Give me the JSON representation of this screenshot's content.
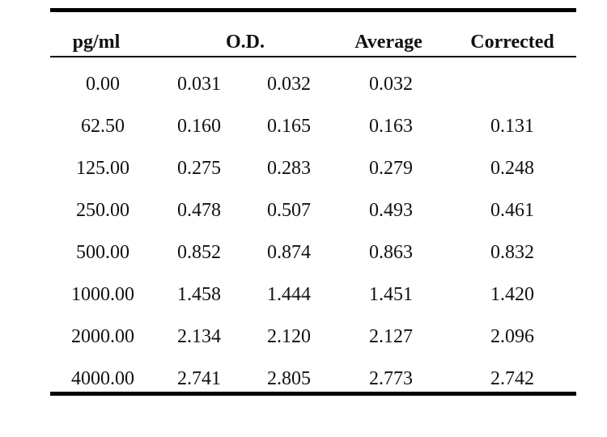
{
  "table": {
    "headers": {
      "concentration": "pg/ml",
      "od": "O.D.",
      "average": "Average",
      "corrected": "Corrected"
    },
    "rows": [
      {
        "conc": "0.00",
        "od1": "0.031",
        "od2": "0.032",
        "avg": "0.032",
        "corr": ""
      },
      {
        "conc": "62.50",
        "od1": "0.160",
        "od2": "0.165",
        "avg": "0.163",
        "corr": "0.131"
      },
      {
        "conc": "125.00",
        "od1": "0.275",
        "od2": "0.283",
        "avg": "0.279",
        "corr": "0.248"
      },
      {
        "conc": "250.00",
        "od1": "0.478",
        "od2": "0.507",
        "avg": "0.493",
        "corr": "0.461"
      },
      {
        "conc": "500.00",
        "od1": "0.852",
        "od2": "0.874",
        "avg": "0.863",
        "corr": "0.832"
      },
      {
        "conc": "1000.00",
        "od1": "1.458",
        "od2": "1.444",
        "avg": "1.451",
        "corr": "1.420"
      },
      {
        "conc": "2000.00",
        "od1": "2.134",
        "od2": "2.120",
        "avg": "2.127",
        "corr": "2.096"
      },
      {
        "conc": "4000.00",
        "od1": "2.741",
        "od2": "2.805",
        "avg": "2.773",
        "corr": "2.742"
      }
    ]
  }
}
